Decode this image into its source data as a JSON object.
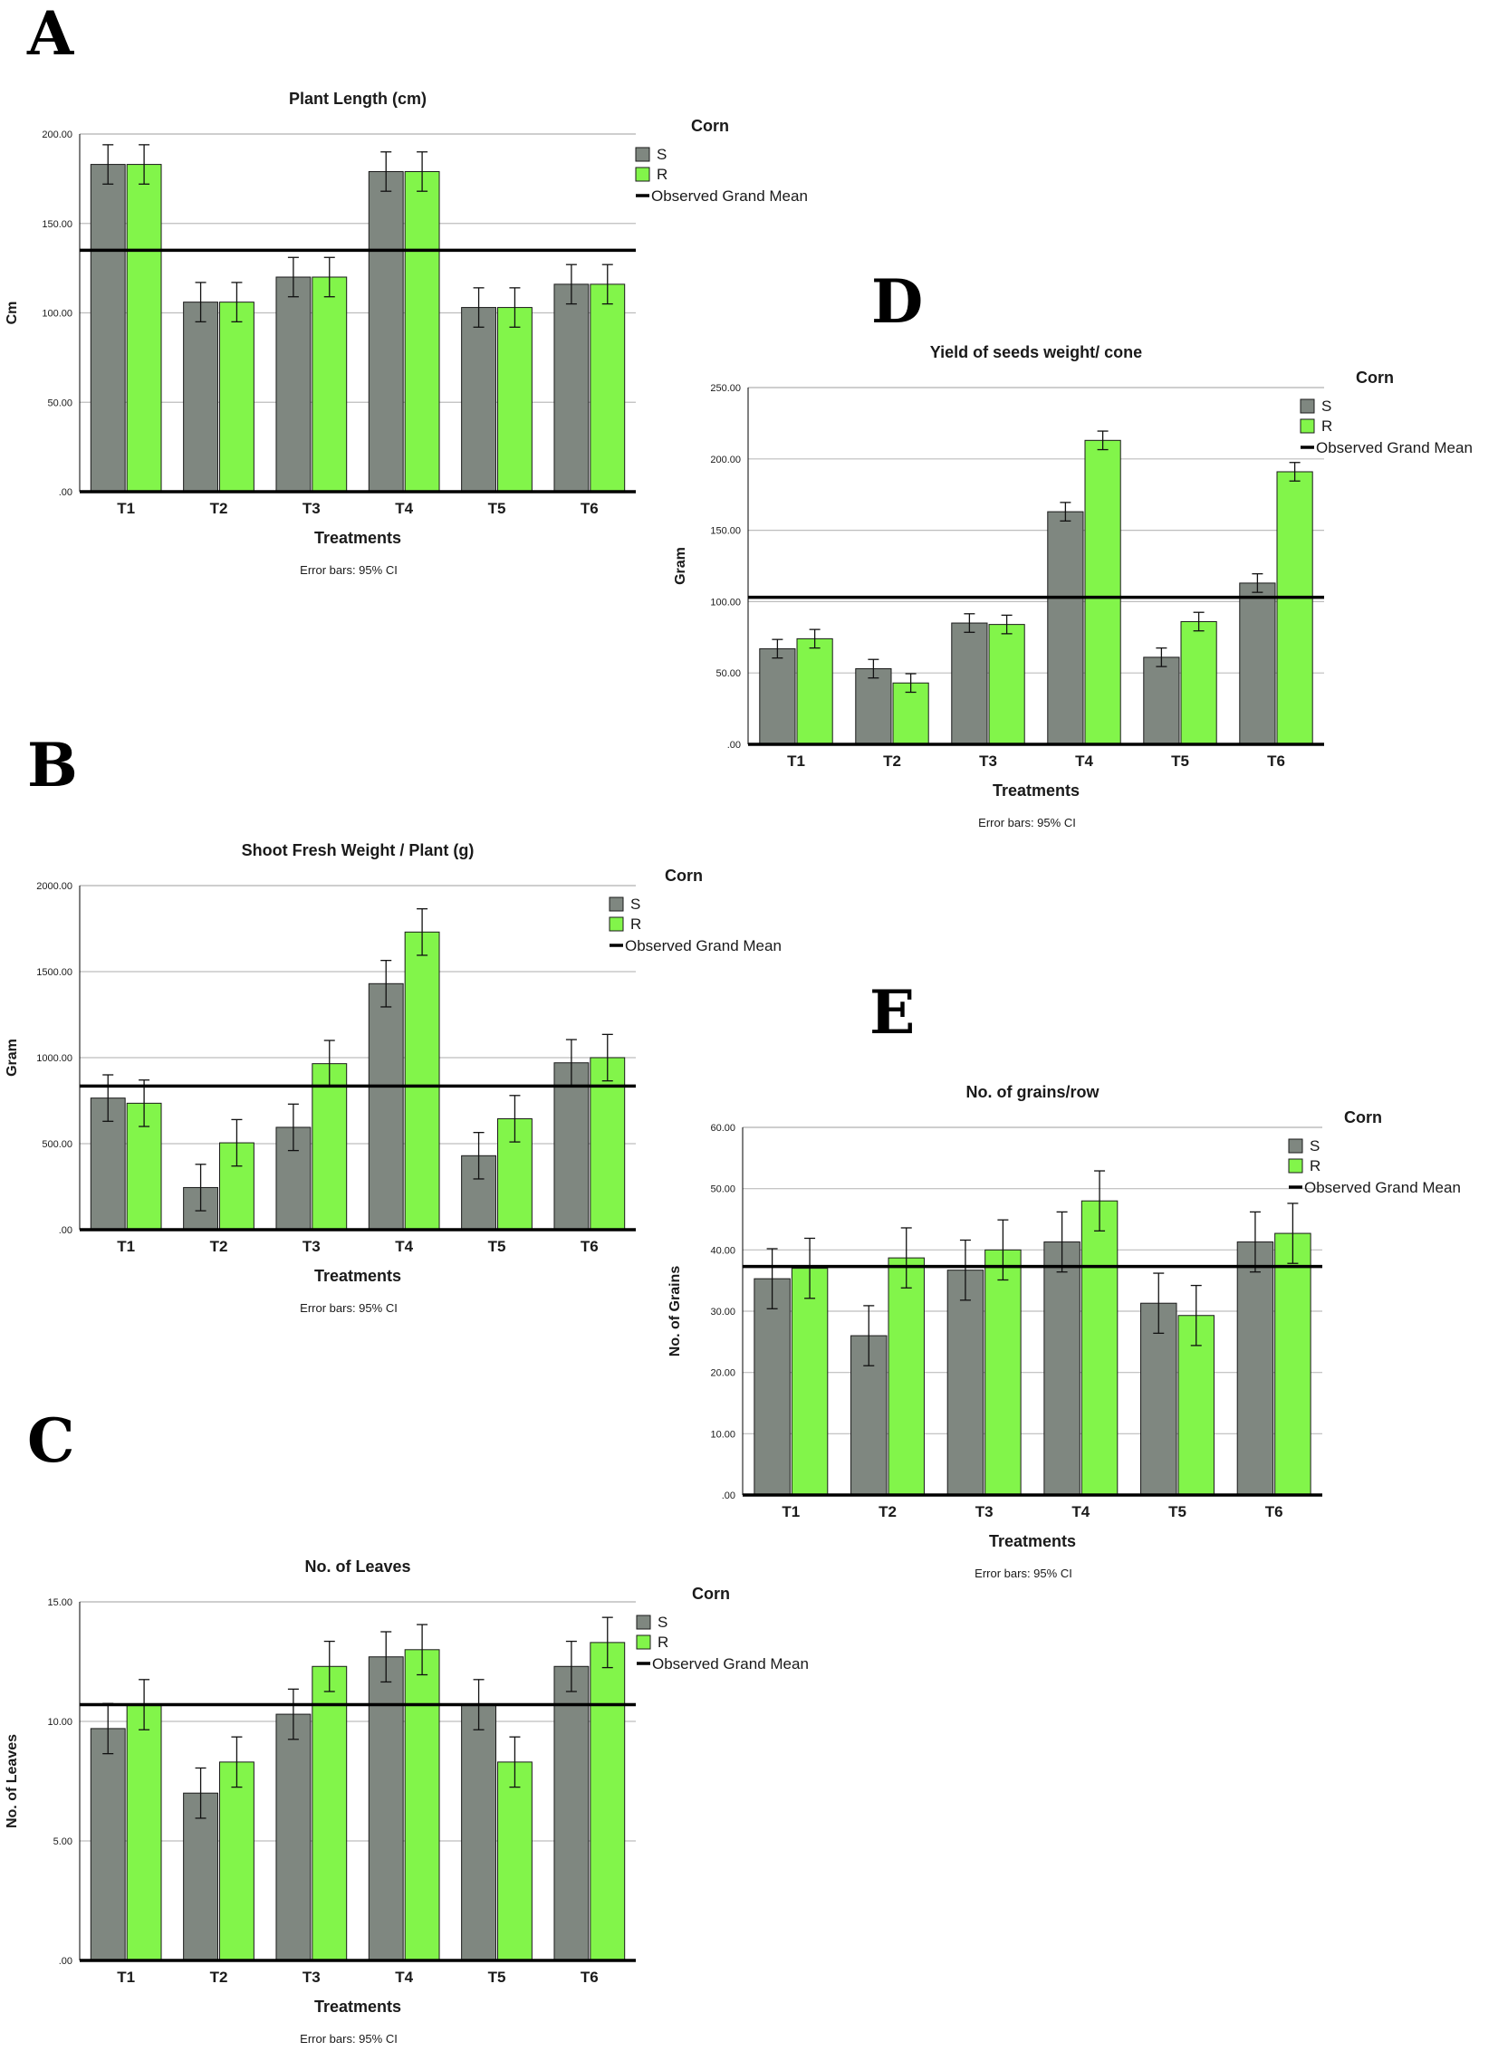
{
  "colors": {
    "s": "#7f8780",
    "r": "#82f54a",
    "mean": "#000000",
    "grid": "#bdbdbd",
    "axis": "#000000"
  },
  "panels": [
    {
      "letter": "A"
    },
    {
      "letter": "B"
    },
    {
      "letter": "C"
    },
    {
      "letter": "D"
    },
    {
      "letter": "E"
    }
  ],
  "chart_data": [
    {
      "type": "bar",
      "title": "Plant Length (cm)",
      "xlabel": "Treatments",
      "ylabel": "Cm",
      "note": "Error bars: 95% CI",
      "legend_title": "Corn",
      "legend_items": [
        "S",
        "R",
        "Observed Grand Mean"
      ],
      "categories": [
        "T1",
        "T2",
        "T3",
        "T4",
        "T5",
        "T6"
      ],
      "yticks": [
        0,
        50,
        100,
        150,
        200
      ],
      "ytick_labels": [
        ".00",
        "50.00",
        "100.00",
        "150.00",
        "200.00"
      ],
      "ylim": [
        0,
        200
      ],
      "grand_mean": 135,
      "series": [
        {
          "name": "S",
          "values": [
            183,
            106,
            120,
            179,
            103,
            116
          ],
          "err": [
            11,
            11,
            11,
            11,
            11,
            11
          ]
        },
        {
          "name": "R",
          "values": [
            183,
            106,
            120,
            179,
            103,
            116
          ],
          "err": [
            11,
            11,
            11,
            11,
            11,
            11
          ]
        }
      ]
    },
    {
      "type": "bar",
      "title": "Shoot Fresh Weight / Plant (g)",
      "xlabel": "Treatments",
      "ylabel": "Gram",
      "note": "Error bars: 95% CI",
      "legend_title": "Corn",
      "legend_items": [
        "S",
        "R",
        "Observed Grand Mean"
      ],
      "categories": [
        "T1",
        "T2",
        "T3",
        "T4",
        "T5",
        "T6"
      ],
      "yticks": [
        0,
        500,
        1000,
        1500,
        2000
      ],
      "ytick_labels": [
        ".00",
        "500.00",
        "1000.00",
        "1500.00",
        "2000.00"
      ],
      "ylim": [
        0,
        2000
      ],
      "grand_mean": 835,
      "series": [
        {
          "name": "S",
          "values": [
            765,
            245,
            595,
            1430,
            430,
            970
          ],
          "err": [
            135,
            135,
            135,
            135,
            135,
            135
          ]
        },
        {
          "name": "R",
          "values": [
            735,
            505,
            965,
            1730,
            645,
            1000
          ],
          "err": [
            135,
            135,
            135,
            135,
            135,
            135
          ]
        }
      ]
    },
    {
      "type": "bar",
      "title": "No. of Leaves",
      "xlabel": "Treatments",
      "ylabel": "No. of Leaves",
      "note": "Error bars: 95% CI",
      "legend_title": "Corn",
      "legend_items": [
        "S",
        "R",
        "Observed Grand Mean"
      ],
      "categories": [
        "T1",
        "T2",
        "T3",
        "T4",
        "T5",
        "T6"
      ],
      "yticks": [
        0,
        5,
        10,
        15
      ],
      "ytick_labels": [
        ".00",
        "5.00",
        "10.00",
        "15.00"
      ],
      "ylim": [
        0,
        15
      ],
      "grand_mean": 10.7,
      "series": [
        {
          "name": "S",
          "values": [
            9.7,
            7.0,
            10.3,
            12.7,
            10.7,
            12.3
          ],
          "err": [
            1.05,
            1.05,
            1.05,
            1.05,
            1.05,
            1.05
          ]
        },
        {
          "name": "R",
          "values": [
            10.7,
            8.3,
            12.3,
            13.0,
            8.3,
            13.3
          ],
          "err": [
            1.05,
            1.05,
            1.05,
            1.05,
            1.05,
            1.05
          ]
        }
      ]
    },
    {
      "type": "bar",
      "title": "Yield of seeds weight/ cone",
      "xlabel": "Treatments",
      "ylabel": "Gram",
      "note": "Error bars: 95% CI",
      "legend_title": "Corn",
      "legend_items": [
        "S",
        "R",
        "Observed Grand Mean"
      ],
      "categories": [
        "T1",
        "T2",
        "T3",
        "T4",
        "T5",
        "T6"
      ],
      "yticks": [
        0,
        50,
        100,
        150,
        200,
        250
      ],
      "ytick_labels": [
        ".00",
        "50.00",
        "100.00",
        "150.00",
        "200.00",
        "250.00"
      ],
      "ylim": [
        0,
        250
      ],
      "grand_mean": 103,
      "series": [
        {
          "name": "S",
          "values": [
            67,
            53,
            85,
            163,
            61,
            113
          ],
          "err": [
            6.5,
            6.5,
            6.5,
            6.5,
            6.5,
            6.5
          ]
        },
        {
          "name": "R",
          "values": [
            74,
            43,
            84,
            213,
            86,
            191
          ],
          "err": [
            6.5,
            6.5,
            6.5,
            6.5,
            6.5,
            6.5
          ]
        }
      ]
    },
    {
      "type": "bar",
      "title": "No. of grains/row",
      "xlabel": "Treatments",
      "ylabel": "No. of Grains",
      "note": "Error bars: 95% CI",
      "legend_title": "Corn",
      "legend_items": [
        "S",
        "R",
        "Observed Grand Mean"
      ],
      "categories": [
        "T1",
        "T2",
        "T3",
        "T4",
        "T5",
        "T6"
      ],
      "yticks": [
        0,
        10,
        20,
        30,
        40,
        50,
        60
      ],
      "ytick_labels": [
        ".00",
        "10.00",
        "20.00",
        "30.00",
        "40.00",
        "50.00",
        "60.00"
      ],
      "ylim": [
        0,
        60
      ],
      "grand_mean": 37.3,
      "series": [
        {
          "name": "S",
          "values": [
            35.3,
            26.0,
            36.7,
            41.3,
            31.3,
            41.3
          ],
          "err": [
            4.9,
            4.9,
            4.9,
            4.9,
            4.9,
            4.9
          ]
        },
        {
          "name": "R",
          "values": [
            37.0,
            38.7,
            40.0,
            48.0,
            29.3,
            42.7
          ],
          "err": [
            4.9,
            4.9,
            4.9,
            4.9,
            4.9,
            4.9
          ]
        }
      ]
    }
  ]
}
